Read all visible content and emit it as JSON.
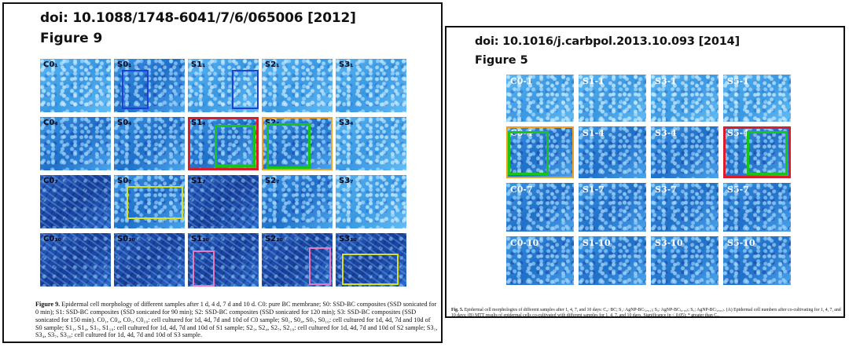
{
  "left": {
    "doi": "doi: 10.1088/1748-6041/7/6/065006 [2012]",
    "figure": "Figure 9",
    "rows": [
      [
        "C0₁",
        "S0₁",
        "S1₁",
        "S2₁",
        "S3₁"
      ],
      [
        "C0₄",
        "S0₄",
        "S1₄",
        "S2₄",
        "S3₄"
      ],
      [
        "C0₇",
        "S0₇",
        "S1₇",
        "S2₇",
        "S3₇"
      ],
      [
        "C0₁₀",
        "S0₁₀",
        "S1₁₀",
        "S2₁₀",
        "S3₁₀"
      ]
    ],
    "caption_title": "Figure 9.",
    "caption_body": " Epidermal cell morphology of different samples after 1 d, 4 d, 7 d and 10 d. C0: pure BC membrane; S0: SSD-BC composites (SSD sonicated for 0 min); S1: SSD-BC composites (SSD sonicated for 90 min); S2: SSD-BC composites (SSD sonicated for 120 min); S3: SSD-BC composites (SSD sonicated for 150 min). C0₁, C0₄, C0₇, C0₁₀: cell cultured for 1d, 4d, 7d and 10d of C0 sample; S0₁, S0₄, S0₇, S0₁₀: cell cultured for 1d, 4d, 7d and 10d of S0 sample; S1₁, S1₄, S1₇, S1₁₀: cell cultured for 1d, 4d, 7d and 10d of S1 sample; S2₁, S2₄, S2₇, S2₁₀: cell cultured for 1d, 4d, 7d and 10d of S2 sample; S3₁, S3₄, S3₇, S3₁₀: cell cultured for 1d, 4d, 7d and 10d of S3 sample."
  },
  "right": {
    "doi": "doi: 10.1016/j.carbpol.2013.10.093 [2014]",
    "figure": "Figure 5",
    "rows": [
      [
        "C0-1",
        "S1-1",
        "S3-1",
        "S5-1"
      ],
      [
        "C0-4",
        "S1-4",
        "S3-4",
        "S5-4"
      ],
      [
        "C0-7",
        "S1-7",
        "S3-7",
        "S5-7"
      ],
      [
        "C0-10",
        "S1-10",
        "S3-10",
        "S5-10"
      ]
    ],
    "caption_title": "Fig. 5.",
    "caption_body": " Epidermal cell morphologies of different samples after 1, 4, 7, and 10 days: C₀: BC; S₁: AgNP-BC₍₀.₀₁₎; S₃: AgNP-BC₍₀.₀₃₎; S₅: AgNP-BC₍₀.₀₅₎. (A) Epidermal cell numbers after co-cultivating for 1, 4, 7, and 10 days; (B) MTT results of epidermal cells co-cultivated with different samples for 1, 4, 7, and 10 days. Significance (p < 0.05): * greater than C₀."
  },
  "colors": {
    "blue_box": "#1e3fd8",
    "green_box": "#18c418",
    "red_box": "#d81e2a",
    "orange_box": "#f0a020",
    "yellow_box": "#d8e020",
    "pink_box": "#e878c0"
  }
}
